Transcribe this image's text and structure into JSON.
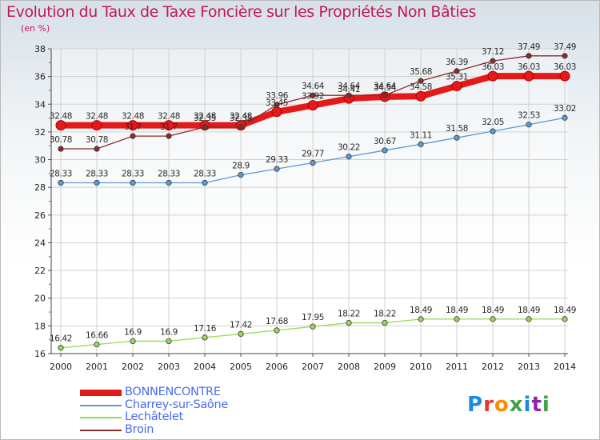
{
  "title": "Evolution du Taux de Taxe Foncière sur les Propriétés Non Bâties",
  "subtitle": "(en %)",
  "brand": {
    "letters": [
      {
        "ch": "P",
        "color": "#1e88e5"
      },
      {
        "ch": "r",
        "color": "#e53935"
      },
      {
        "ch": "o",
        "color": "#fb8c00"
      },
      {
        "ch": "x",
        "color": "#43a047"
      },
      {
        "ch": "i",
        "color": "#1e88e5"
      },
      {
        "ch": "t",
        "color": "#8e24aa"
      },
      {
        "ch": "i",
        "color": "#43a047"
      }
    ]
  },
  "chart_data": {
    "type": "line",
    "title": "Evolution du Taux de Taxe Foncière sur les Propriétés Non Bâties",
    "xlabel": "",
    "ylabel": "(en %)",
    "ylim": [
      16,
      38
    ],
    "yticks": [
      16,
      18,
      20,
      22,
      24,
      26,
      28,
      30,
      32,
      34,
      36,
      38
    ],
    "grid": true,
    "legend_position": "bottom-left",
    "categories": [
      "2000",
      "2001",
      "2002",
      "2003",
      "2004",
      "2005",
      "2006",
      "2007",
      "2008",
      "2009",
      "2010",
      "2011",
      "2012",
      "2013",
      "2014"
    ],
    "series": [
      {
        "name": "BONNENCONTRE",
        "color": "#e41a1a",
        "emphasis": true,
        "values": [
          32.48,
          32.48,
          32.48,
          32.48,
          32.48,
          32.48,
          33.45,
          33.92,
          34.41,
          34.54,
          34.58,
          35.31,
          36.03,
          36.03,
          36.03
        ],
        "labels": [
          "32.48",
          "32.48",
          "32.48",
          "32.48",
          "32.48",
          "32.48",
          "33.45",
          "33.92",
          "34.41",
          "34.54",
          "34.58",
          "35.31",
          "36.03",
          "36.03",
          "36.03"
        ]
      },
      {
        "name": "Charrey-sur-Saône",
        "color": "#5b9bd5",
        "values": [
          28.33,
          28.33,
          28.33,
          28.33,
          28.33,
          28.9,
          29.33,
          29.77,
          30.22,
          30.67,
          31.11,
          31.58,
          32.05,
          32.53,
          33.02
        ],
        "labels": [
          "28.33",
          "28.33",
          "28.33",
          "28.33",
          "28.33",
          "28.9",
          "29.33",
          "29.77",
          "30.22",
          "30.67",
          "31.11",
          "31.58",
          "32.05",
          "32.53",
          "33.02"
        ]
      },
      {
        "name": "Lechâtelet",
        "color": "#99d65c",
        "values": [
          16.42,
          16.66,
          16.9,
          16.9,
          17.16,
          17.42,
          17.68,
          17.95,
          18.22,
          18.22,
          18.49,
          18.49,
          18.49,
          18.49,
          18.49
        ],
        "labels": [
          "16.42",
          "16.66",
          "16.9",
          "16.9",
          "17.16",
          "17.42",
          "17.68",
          "17.95",
          "18.22",
          "18.22",
          "18.49",
          "18.49",
          "18.49",
          "18.49",
          "18.49"
        ]
      },
      {
        "name": "Broin",
        "color": "#8b2b2b",
        "values": [
          30.78,
          30.78,
          31.7,
          31.7,
          32.35,
          32.35,
          33.96,
          34.64,
          34.64,
          34.64,
          35.68,
          36.39,
          37.12,
          37.49,
          37.49
        ],
        "labels": [
          "30.78",
          "30.78",
          "31.7",
          "31.7",
          "32.35",
          "32.35",
          "33.96",
          "34.64",
          "34.64",
          "34.64",
          "35.68",
          "36.39",
          "37.12",
          "37.49",
          "37.49"
        ]
      }
    ]
  }
}
